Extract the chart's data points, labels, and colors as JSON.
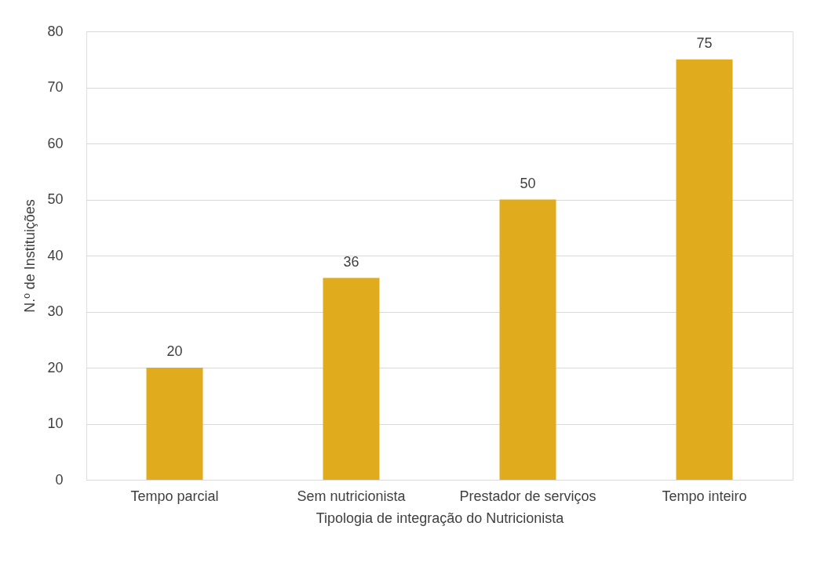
{
  "chart_data": {
    "type": "bar",
    "xlabel": "Tipologia de integração do Nutricionista",
    "ylabel": "N.º de Instituições",
    "categories": [
      "Tempo parcial",
      "Sem nutricionista",
      "Prestador de serviços",
      "Tempo inteiro"
    ],
    "values": [
      20,
      36,
      50,
      75
    ],
    "color": "#e0ac1e",
    "ylim": [
      0,
      80
    ],
    "yticks": [
      0,
      10,
      20,
      30,
      40,
      50,
      60,
      70,
      80
    ],
    "grid": "y",
    "data_labels": true
  }
}
